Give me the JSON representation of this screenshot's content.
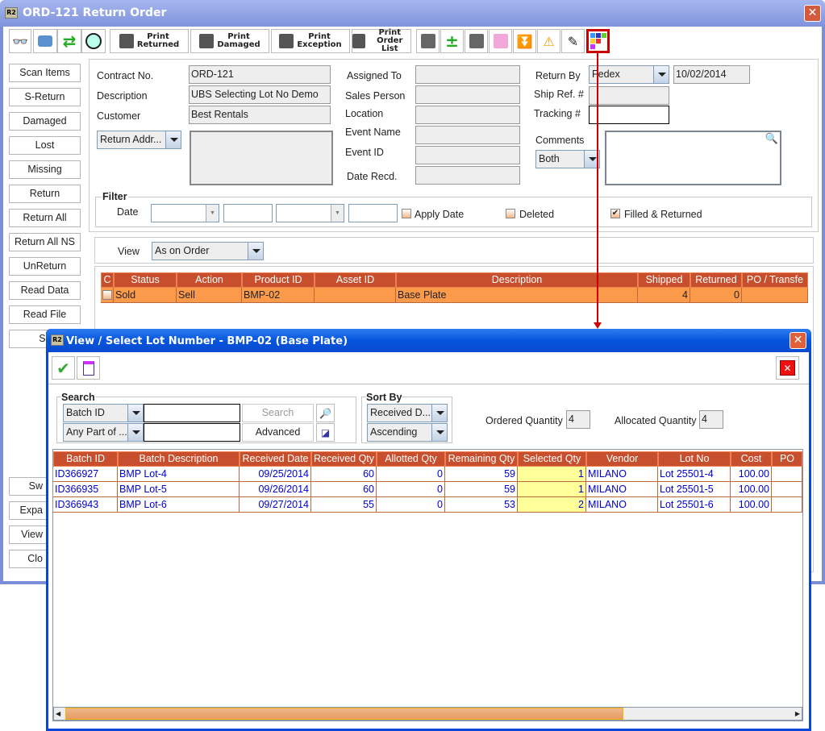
{
  "main": {
    "title": "ORD-121 Return Order",
    "app_icon": "R2",
    "toolbar": {
      "print_returned": [
        "Print",
        "Returned"
      ],
      "print_damaged": [
        "Print",
        "Damaged"
      ],
      "print_exception": [
        "Print",
        "Exception"
      ],
      "print_order_list": [
        "Print",
        "Order List"
      ]
    },
    "left_buttons": [
      "Scan Items",
      "S-Return",
      "Damaged",
      "Lost",
      "Missing",
      "Return",
      "Return All",
      "Return All NS",
      "UnReturn",
      "Read Data",
      "Read File",
      "Sc"
    ],
    "left_buttons_bottom": [
      "Sw",
      "Expa",
      "View",
      "Clo"
    ],
    "form": {
      "contract_no_label": "Contract No.",
      "contract_no": "ORD-121",
      "description_label": "Description",
      "description": "UBS Selecting Lot No Demo",
      "customer_label": "Customer",
      "customer": "Best Rentals",
      "return_addr": "Return Addr...",
      "assigned_to_label": "Assigned To",
      "sales_person_label": "Sales Person",
      "location_label": "Location",
      "event_name_label": "Event Name",
      "event_id_label": "Event ID",
      "date_recd_label": "Date Recd.",
      "return_by_label": "Return By",
      "return_by": "Fedex",
      "return_date": "10/02/2014",
      "ship_ref_label": "Ship Ref. #",
      "tracking_label": "Tracking #",
      "comments_label": "Comments",
      "comments_filter": "Both"
    },
    "filter": {
      "title": "Filter",
      "date_label": "Date",
      "apply_date": "Apply Date",
      "apply_date_checked": false,
      "deleted": "Deleted",
      "deleted_checked": false,
      "filled_returned": "Filled & Returned",
      "filled_returned_checked": true
    },
    "view": {
      "label": "View",
      "value": "As on Order"
    },
    "table": {
      "columns": [
        "C",
        "Status",
        "Action",
        "Product ID",
        "Asset ID",
        "Description",
        "Shipped",
        "Returned",
        "PO / Transfe"
      ],
      "rows": [
        [
          "",
          "Sold",
          "Sell",
          "BMP-02",
          "",
          "Base Plate",
          "4",
          "0",
          ""
        ]
      ]
    }
  },
  "dialog": {
    "title": "View / Select Lot Number - BMP-02 (Base Plate)",
    "app_icon": "R2",
    "search": {
      "title": "Search",
      "field": "Batch ID",
      "match": "Any Part of ...",
      "query1": "",
      "query2": "",
      "search_btn": "Search",
      "advanced_btn": "Advanced"
    },
    "sort": {
      "title": "Sort By",
      "field": "Received D...",
      "order": "Ascending"
    },
    "ordered_qty_label": "Ordered Quantity",
    "ordered_qty": "4",
    "allocated_qty_label": "Allocated Quantity",
    "allocated_qty": "4",
    "table": {
      "columns": [
        "Batch ID",
        "Batch Description",
        "Received Date",
        "Received Qty",
        "Allotted Qty",
        "Remaining Qty",
        "Selected Qty",
        "Vendor",
        "Lot No",
        "Cost",
        "PO"
      ],
      "rows": [
        [
          "ID366927",
          "BMP Lot-4",
          "09/25/2014",
          "60",
          "0",
          "59",
          "1",
          "MILANO",
          "Lot 25501-4",
          "100.00",
          ""
        ],
        [
          "ID366935",
          "BMP Lot-5",
          "09/26/2014",
          "60",
          "0",
          "59",
          "1",
          "MILANO",
          "Lot 25501-5",
          "100.00",
          ""
        ],
        [
          "ID366943",
          "BMP Lot-6",
          "09/27/2014",
          "55",
          "0",
          "53",
          "2",
          "MILANO",
          "Lot 25501-6",
          "100.00",
          ""
        ]
      ]
    },
    "scroll_fraction": 0.77
  },
  "colors": {
    "header": "#c84f2e",
    "selected_row": "#fb9a4b",
    "selected_qty_bg": "#ffff99",
    "link_text": "#0000cc",
    "annotation": "#cc0000"
  }
}
